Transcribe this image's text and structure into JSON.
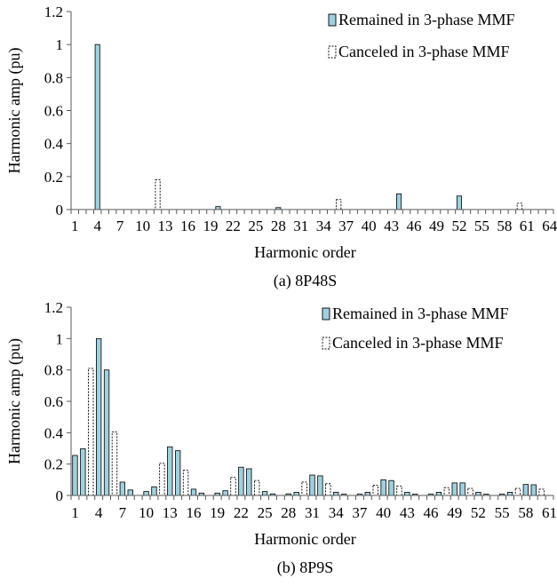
{
  "colors": {
    "remained": "#9fd0df",
    "canceled": "#ffffff",
    "axis": "#595959",
    "edge": "#000000"
  },
  "chart_data": [
    {
      "type": "bar",
      "subtitle": "(a) 8P48S",
      "xlabel": "Harmonic order",
      "ylabel": "Harmonic amp (pu)",
      "ylim": [
        0,
        1.2
      ],
      "yticks": [
        "0",
        "0.2",
        "0.4",
        "0.6",
        "0.8",
        "1",
        "1.2"
      ],
      "x_range": [
        1,
        64
      ],
      "x_ticks": [
        1,
        4,
        7,
        10,
        13,
        16,
        19,
        22,
        25,
        28,
        31,
        34,
        37,
        40,
        43,
        46,
        49,
        52,
        55,
        58,
        61,
        64
      ],
      "grid": false,
      "legend_position": "top-right",
      "series": [
        {
          "name": "Remained in 3-phase MMF",
          "style": "solid",
          "x": [
            4,
            20,
            28,
            44,
            52
          ],
          "values": [
            1.0,
            0.018,
            0.012,
            0.095,
            0.082
          ]
        },
        {
          "name": "Canceled in 3-phase MMF",
          "style": "dashed",
          "x": [
            12,
            36,
            60
          ],
          "values": [
            0.18,
            0.06,
            0.038
          ]
        }
      ]
    },
    {
      "type": "bar",
      "subtitle": "(b) 8P9S",
      "xlabel": "Harmonic order",
      "ylabel": "Harmonic amp (pu)",
      "ylim": [
        0,
        1.2
      ],
      "yticks": [
        "0",
        "0.2",
        "0.4",
        "0.6",
        "0.8",
        "1",
        "1.2"
      ],
      "x_range": [
        1,
        61
      ],
      "x_ticks": [
        1,
        4,
        7,
        10,
        13,
        16,
        19,
        22,
        25,
        28,
        31,
        34,
        37,
        40,
        43,
        46,
        49,
        52,
        55,
        58,
        61
      ],
      "grid": false,
      "legend_position": "top-right",
      "series": [
        {
          "name": "Remained in 3-phase MMF",
          "style": "solid",
          "x": [
            1,
            2,
            4,
            5,
            7,
            8,
            10,
            11,
            13,
            14,
            16,
            17,
            19,
            20,
            22,
            23,
            25,
            26,
            28,
            29,
            31,
            32,
            34,
            35,
            37,
            38,
            40,
            41,
            43,
            44,
            46,
            47,
            49,
            50,
            52,
            53,
            55,
            56,
            58,
            59
          ],
          "values": [
            0.255,
            0.298,
            1.0,
            0.8,
            0.085,
            0.035,
            0.025,
            0.055,
            0.31,
            0.285,
            0.04,
            0.015,
            0.015,
            0.03,
            0.18,
            0.17,
            0.025,
            0.01,
            0.01,
            0.02,
            0.13,
            0.125,
            0.02,
            0.008,
            0.008,
            0.02,
            0.1,
            0.095,
            0.02,
            0.008,
            0.008,
            0.02,
            0.08,
            0.08,
            0.02,
            0.008,
            0.008,
            0.02,
            0.07,
            0.068
          ]
        },
        {
          "name": "Canceled in 3-phase MMF",
          "style": "dashed",
          "x": [
            3,
            6,
            12,
            15,
            21,
            24,
            30,
            33,
            39,
            42,
            48,
            51,
            57,
            60
          ],
          "values": [
            0.81,
            0.405,
            0.205,
            0.16,
            0.115,
            0.095,
            0.085,
            0.075,
            0.065,
            0.06,
            0.05,
            0.045,
            0.045,
            0.04
          ]
        }
      ]
    }
  ]
}
